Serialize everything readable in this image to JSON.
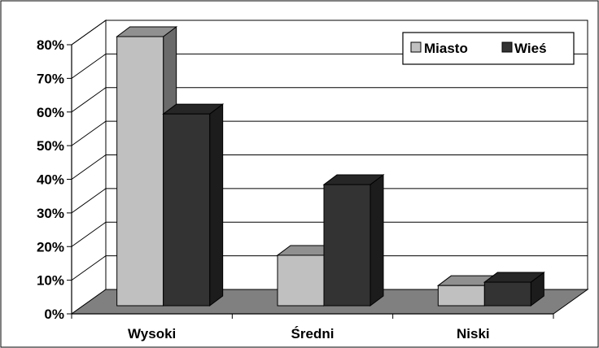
{
  "chart_data": {
    "type": "bar",
    "style": "3d-clustered-column",
    "categories": [
      "Wysoki",
      "Średni",
      "Niski"
    ],
    "series": [
      {
        "name": "Miasto",
        "values": [
          80,
          15,
          6
        ],
        "color": "#c0c0c0"
      },
      {
        "name": "Wieś",
        "values": [
          57,
          36,
          7
        ],
        "color": "#333333"
      }
    ],
    "yticks": [
      "0%",
      "10%",
      "20%",
      "30%",
      "40%",
      "50%",
      "60%",
      "70%",
      "80%"
    ],
    "ylim": [
      0,
      80
    ],
    "ytick_step": 10,
    "y_unit": "%",
    "grid": true,
    "legend_position": "top-right",
    "colors": {
      "floor": "#808080",
      "wall": "#ffffff",
      "frame": "#000000"
    }
  }
}
